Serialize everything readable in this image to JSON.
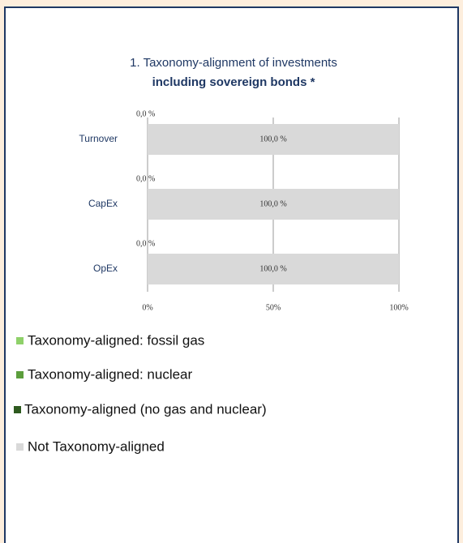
{
  "chart_data": {
    "type": "bar",
    "orientation": "horizontal",
    "stacked": true,
    "title": "1. Taxonomy-alignment of investments",
    "subtitle": "including sovereign bonds *",
    "categories": [
      "Turnover",
      "CapEx",
      "OpEx"
    ],
    "series": [
      {
        "name": "Taxonomy-aligned: fossil gas",
        "color": "#8fd16a",
        "values": [
          0,
          0,
          0
        ]
      },
      {
        "name": "Taxonomy-aligned: nuclear",
        "color": "#5c9e3c",
        "values": [
          0,
          0,
          0
        ]
      },
      {
        "name": "Taxonomy-aligned (no gas and nuclear)",
        "color": "#2e5a1f",
        "values": [
          0,
          0,
          0
        ],
        "value_labels": [
          "0,0 %",
          "0,0 %",
          "0,0 %"
        ]
      },
      {
        "name": "Not Taxonomy-aligned",
        "color": "#d9d9d9",
        "values": [
          100,
          100,
          100
        ],
        "value_labels": [
          "100,0 %",
          "100,0 %",
          "100,0 %"
        ]
      }
    ],
    "xlim": [
      0,
      100
    ],
    "xticks": [
      {
        "value": 0,
        "label": "0%"
      },
      {
        "value": 50,
        "label": "50%"
      },
      {
        "value": 100,
        "label": "100%"
      }
    ],
    "grid": true
  }
}
